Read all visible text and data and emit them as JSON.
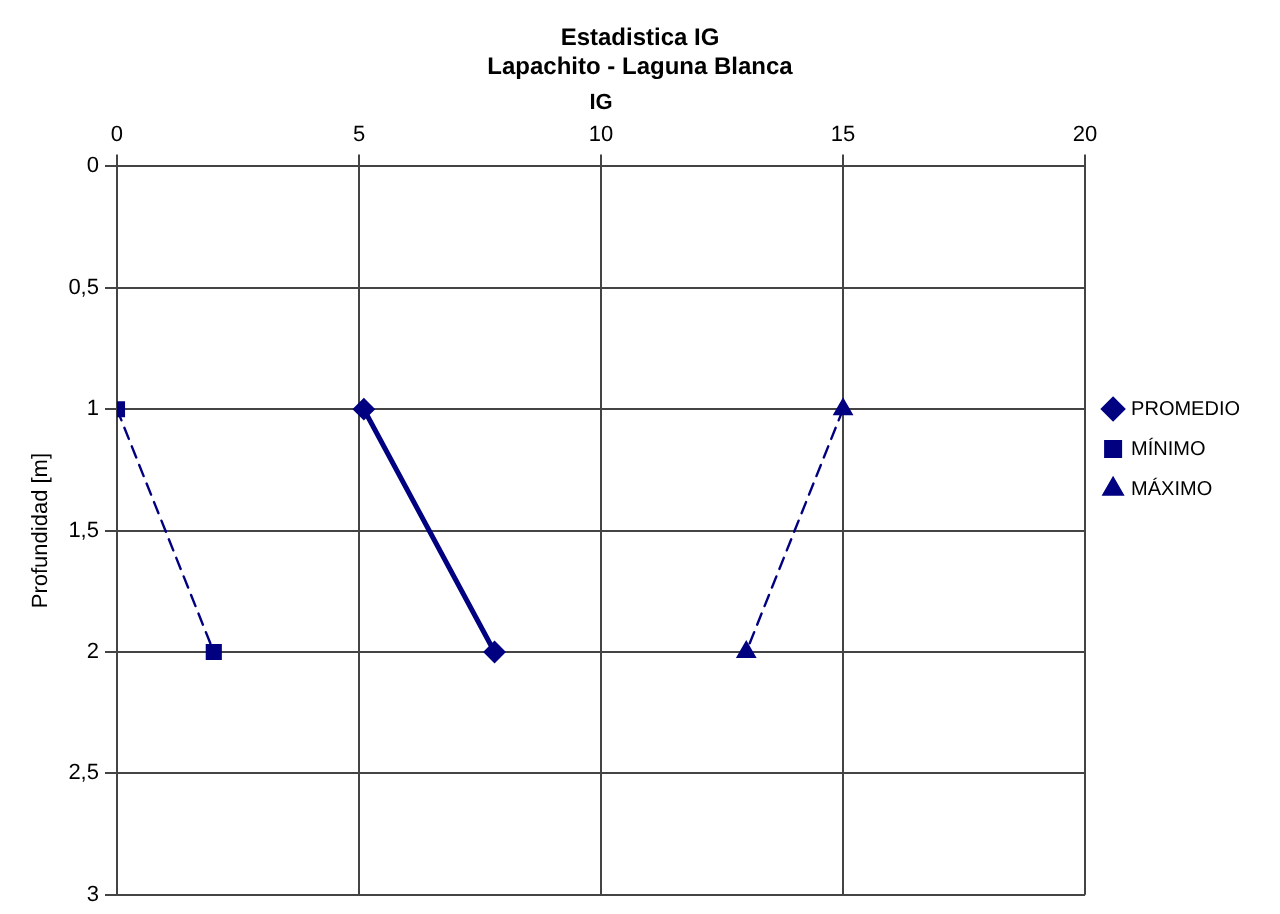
{
  "chart_data": {
    "type": "line",
    "title": "Estadistica IG",
    "subtitle": "Lapachito - Laguna Blanca",
    "xlabel": "IG",
    "ylabel": "Profundidad [m]",
    "xlim": [
      0,
      20
    ],
    "xticks": [
      0,
      5,
      10,
      15,
      20
    ],
    "ylim": [
      3,
      0
    ],
    "yticks": [
      0,
      {
        "value": 0.5,
        "label": "0,5"
      },
      1,
      {
        "value": 1.5,
        "label": "1,5"
      },
      2,
      {
        "value": 2.5,
        "label": "2,5"
      },
      3
    ],
    "grid": true,
    "legend": "right",
    "series": [
      {
        "name": "PROMEDIO",
        "color": "#000080",
        "x": [
          5.1,
          7.8
        ],
        "values": [
          1,
          2
        ],
        "marker": "diamond",
        "line_style": "solid"
      },
      {
        "name": "MÍNIMO",
        "color": "#000080",
        "x": [
          0,
          2
        ],
        "values": [
          1,
          2
        ],
        "marker": "square",
        "line_style": "dashed"
      },
      {
        "name": "MÁXIMO",
        "color": "#000080",
        "x": [
          15,
          13
        ],
        "values": [
          1,
          2
        ],
        "marker": "triangle",
        "line_style": "dashed"
      }
    ]
  }
}
